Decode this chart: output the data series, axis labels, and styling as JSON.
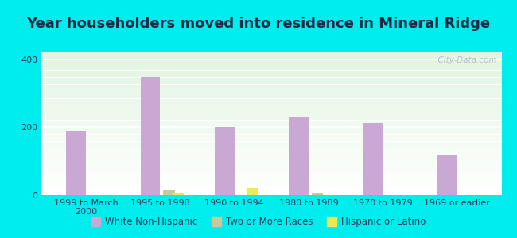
{
  "title": "Year householders moved into residence in Mineral Ridge",
  "categories": [
    "1999 to March\n2000",
    "1995 to 1998",
    "1990 to 1994",
    "1980 to 1989",
    "1970 to 1979",
    "1969 or earlier"
  ],
  "white_non_hispanic": [
    188,
    348,
    200,
    232,
    213,
    117
  ],
  "two_or_more_races": [
    0,
    13,
    0,
    8,
    0,
    0
  ],
  "hispanic_or_latino": [
    0,
    8,
    20,
    0,
    0,
    0
  ],
  "bar_width": 0.22,
  "colors": {
    "white_non_hispanic": "#c9a8d4",
    "two_or_more_races": "#c8ca9a",
    "hispanic_or_latino": "#eaea55"
  },
  "legend_labels": [
    "White Non-Hispanic",
    "Two or More Races",
    "Hispanic or Latino"
  ],
  "ylim": [
    0,
    420
  ],
  "yticks": [
    0,
    200,
    400
  ],
  "background_outer": "#00eded",
  "watermark": "  City-Data.com",
  "title_fontsize": 13,
  "tick_fontsize": 8,
  "legend_fontsize": 8.5
}
